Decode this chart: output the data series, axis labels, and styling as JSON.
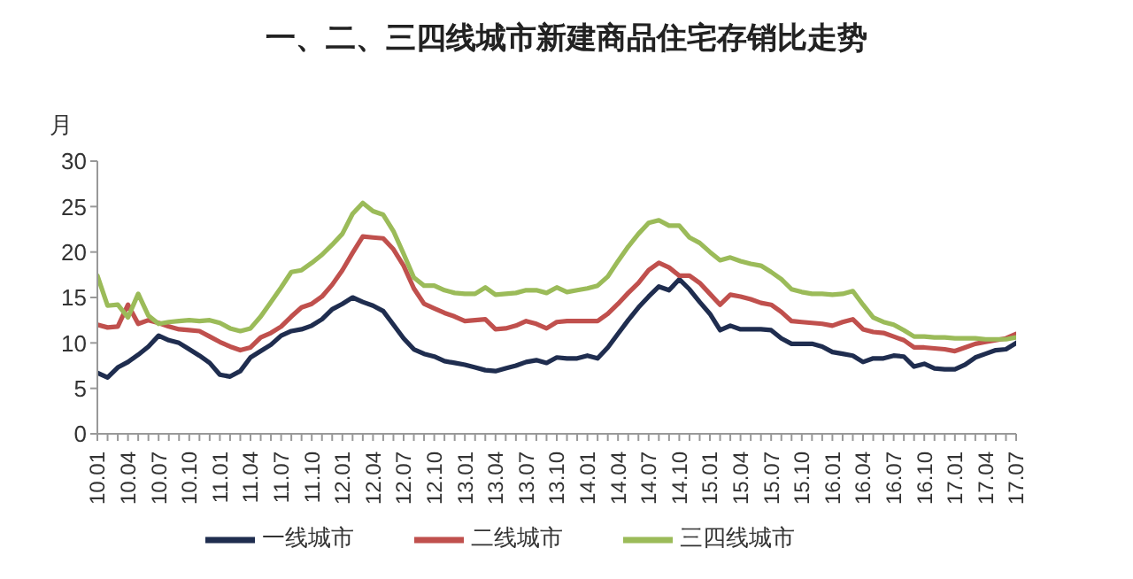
{
  "chart_data": {
    "type": "line",
    "title": "一、二、三四线城市新建商品住宅存销比走势",
    "ylabel": "月",
    "categories": [
      "10.01",
      null,
      null,
      "10.04",
      null,
      null,
      "10.07",
      null,
      null,
      "10.10",
      null,
      null,
      "11.01",
      null,
      null,
      "11.04",
      null,
      null,
      "11.07",
      null,
      null,
      "11.10",
      null,
      null,
      "12.01",
      null,
      null,
      "12.04",
      null,
      null,
      "12.07",
      null,
      null,
      "12.10",
      null,
      null,
      "13.01",
      null,
      null,
      "13.04",
      null,
      null,
      "13.07",
      null,
      null,
      "13.10",
      null,
      null,
      "14.01",
      null,
      null,
      "14.04",
      null,
      null,
      "14.07",
      null,
      null,
      "14.10",
      null,
      null,
      "15.01",
      null,
      null,
      "15.04",
      null,
      null,
      "15.07",
      null,
      null,
      "15.10",
      null,
      null,
      "16.01",
      null,
      null,
      "16.04",
      null,
      null,
      "16.07",
      null,
      null,
      "16.10",
      null,
      null,
      "17.01",
      null,
      null,
      "17.04",
      null,
      null,
      "17.07"
    ],
    "series": [
      {
        "name": "一线城市",
        "color": "#1f2d4f",
        "values": [
          6.7,
          6.2,
          7.3,
          7.9,
          8.7,
          9.6,
          10.8,
          10.3,
          10.0,
          9.3,
          8.6,
          7.8,
          6.5,
          6.3,
          6.9,
          8.4,
          9.1,
          9.8,
          10.8,
          11.3,
          11.5,
          11.9,
          12.6,
          13.7,
          14.3,
          15.0,
          14.5,
          14.1,
          13.5,
          12.0,
          10.5,
          9.3,
          8.8,
          8.5,
          8.0,
          7.8,
          7.6,
          7.3,
          7.0,
          6.9,
          7.2,
          7.5,
          7.9,
          8.1,
          7.8,
          8.4,
          8.3,
          8.3,
          8.6,
          8.3,
          9.5,
          11.0,
          12.5,
          13.9,
          15.1,
          16.2,
          15.8,
          17.0,
          15.9,
          14.5,
          13.2,
          11.4,
          11.9,
          11.5,
          11.5,
          11.5,
          11.4,
          10.5,
          9.9,
          9.9,
          9.9,
          9.6,
          9.0,
          8.8,
          8.6,
          7.9,
          8.3,
          8.3,
          8.6,
          8.5,
          7.4,
          7.7,
          7.2,
          7.1,
          7.1,
          7.6,
          8.4,
          8.8,
          9.2,
          9.3,
          10.0
        ]
      },
      {
        "name": "二线城市",
        "color": "#c0504d",
        "values": [
          12.0,
          11.7,
          11.8,
          14.2,
          12.1,
          12.5,
          12.2,
          11.8,
          11.5,
          11.4,
          11.3,
          10.7,
          10.1,
          9.6,
          9.2,
          9.5,
          10.6,
          11.1,
          11.8,
          12.9,
          13.9,
          14.3,
          15.1,
          16.4,
          18.0,
          19.9,
          21.7,
          21.6,
          21.5,
          20.3,
          18.5,
          16.0,
          14.3,
          13.8,
          13.3,
          12.9,
          12.4,
          12.5,
          12.6,
          11.5,
          11.6,
          11.9,
          12.4,
          12.1,
          11.6,
          12.3,
          12.4,
          12.4,
          12.4,
          12.4,
          13.2,
          14.3,
          15.5,
          16.6,
          18.0,
          18.8,
          18.3,
          17.4,
          17.4,
          16.6,
          15.4,
          14.2,
          15.3,
          15.1,
          14.8,
          14.4,
          14.2,
          13.4,
          12.4,
          12.3,
          12.2,
          12.1,
          11.9,
          12.3,
          12.6,
          11.5,
          11.2,
          11.1,
          10.7,
          10.3,
          9.5,
          9.5,
          9.4,
          9.3,
          9.1,
          9.5,
          9.9,
          10.1,
          10.3,
          10.5,
          11.0
        ]
      },
      {
        "name": "三四线城市",
        "color": "#9bbb59",
        "values": [
          17.4,
          14.1,
          14.2,
          12.8,
          15.4,
          13.0,
          12.1,
          12.3,
          12.4,
          12.5,
          12.4,
          12.5,
          12.2,
          11.6,
          11.3,
          11.6,
          12.9,
          14.5,
          16.1,
          17.8,
          18.0,
          18.8,
          19.7,
          20.8,
          22.0,
          24.2,
          25.4,
          24.5,
          24.1,
          22.3,
          19.8,
          17.2,
          16.3,
          16.3,
          15.8,
          15.5,
          15.4,
          15.4,
          16.1,
          15.3,
          15.4,
          15.5,
          15.8,
          15.8,
          15.5,
          16.1,
          15.6,
          15.8,
          16.0,
          16.3,
          17.3,
          19.0,
          20.6,
          22.0,
          23.2,
          23.5,
          22.9,
          22.9,
          21.6,
          21.0,
          20.0,
          19.1,
          19.4,
          19.0,
          18.7,
          18.5,
          17.8,
          17.0,
          15.9,
          15.6,
          15.4,
          15.4,
          15.3,
          15.4,
          15.7,
          14.2,
          12.8,
          12.3,
          12.0,
          11.4,
          10.7,
          10.7,
          10.6,
          10.6,
          10.5,
          10.5,
          10.5,
          10.4,
          10.4,
          10.4,
          10.6
        ]
      }
    ],
    "ylim": [
      0,
      30
    ],
    "yticks": [
      0,
      5,
      10,
      15,
      20,
      25,
      30
    ],
    "legend": "bottom"
  }
}
